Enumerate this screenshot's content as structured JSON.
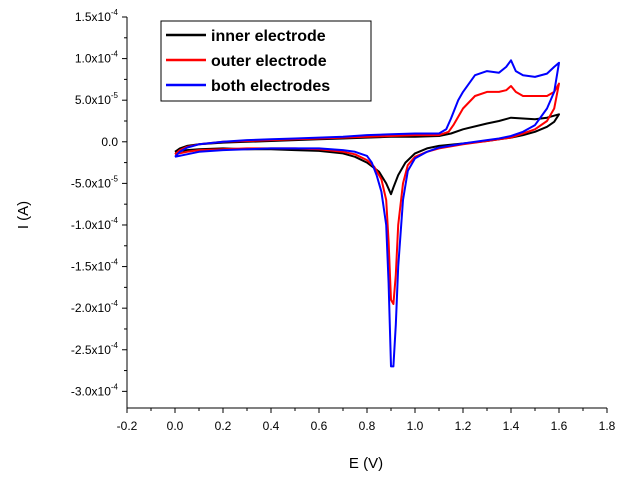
{
  "chart_data": {
    "type": "line",
    "xlabel": "E (V)",
    "ylabel": "I (A)",
    "xlim": [
      -0.2,
      1.8
    ],
    "ylim": [
      -0.00032,
      0.00015
    ],
    "grid": false,
    "legend_position": "top-left",
    "x_ticks": [
      {
        "value": -0.2,
        "label": "-0.2"
      },
      {
        "value": 0.0,
        "label": "0.0"
      },
      {
        "value": 0.2,
        "label": "0.2"
      },
      {
        "value": 0.4,
        "label": "0.4"
      },
      {
        "value": 0.6,
        "label": "0.6"
      },
      {
        "value": 0.8,
        "label": "0.8"
      },
      {
        "value": 1.0,
        "label": "1.0"
      },
      {
        "value": 1.2,
        "label": "1.2"
      },
      {
        "value": 1.4,
        "label": "1.4"
      },
      {
        "value": 1.6,
        "label": "1.6"
      },
      {
        "value": 1.8,
        "label": "1.8"
      }
    ],
    "y_ticks": [
      {
        "value": 0.00015,
        "mantissa": "1.5x10",
        "exp": "-4"
      },
      {
        "value": 0.0001,
        "mantissa": "1.0x10",
        "exp": "-4"
      },
      {
        "value": 5e-05,
        "mantissa": "5.0x10",
        "exp": "-5"
      },
      {
        "value": 0.0,
        "mantissa": "0.0",
        "exp": ""
      },
      {
        "value": -5e-05,
        "mantissa": "-5.0x10",
        "exp": "-5"
      },
      {
        "value": -0.0001,
        "mantissa": "-1.0x10",
        "exp": "-4"
      },
      {
        "value": -0.00015,
        "mantissa": "-1.5x10",
        "exp": "-4"
      },
      {
        "value": -0.0002,
        "mantissa": "-2.0x10",
        "exp": "-4"
      },
      {
        "value": -0.00025,
        "mantissa": "-2.5x10",
        "exp": "-4"
      },
      {
        "value": -0.0003,
        "mantissa": "-3.0x10",
        "exp": "-4"
      }
    ],
    "series": [
      {
        "name": "inner electrode",
        "color": "#000000",
        "x": [
          0.0,
          0.02,
          0.05,
          0.1,
          0.2,
          0.3,
          0.4,
          0.5,
          0.6,
          0.7,
          0.8,
          0.9,
          1.0,
          1.1,
          1.15,
          1.2,
          1.3,
          1.35,
          1.4,
          1.45,
          1.5,
          1.55,
          1.6,
          1.58,
          1.55,
          1.5,
          1.45,
          1.4,
          1.35,
          1.3,
          1.2,
          1.1,
          1.05,
          1.0,
          0.96,
          0.93,
          0.91,
          0.9,
          0.88,
          0.85,
          0.8,
          0.75,
          0.7,
          0.6,
          0.5,
          0.4,
          0.3,
          0.2,
          0.1,
          0.05,
          0.0
        ],
        "y": [
          -1.2e-05,
          -8e-06,
          -5e-06,
          -3e-06,
          -1e-06,
          0.0,
          1e-06,
          2e-06,
          3e-06,
          4e-06,
          5e-06,
          6e-06,
          6e-06,
          7e-06,
          1e-05,
          1.5e-05,
          2.2e-05,
          2.5e-05,
          2.9e-05,
          2.8e-05,
          2.7e-05,
          2.9e-05,
          3.3e-05,
          2.4e-05,
          1.8e-05,
          1.2e-05,
          8e-06,
          5e-06,
          3e-06,
          1e-06,
          -2e-06,
          -5e-06,
          -8e-06,
          -1.4e-05,
          -2.5e-05,
          -4e-05,
          -5.5e-05,
          -6.3e-05,
          -5e-05,
          -3.6e-05,
          -2.5e-05,
          -1.8e-05,
          -1.4e-05,
          -1.1e-05,
          -1e-05,
          -9e-06,
          -9e-06,
          -8e-06,
          -9e-06,
          -1e-05,
          -1.2e-05
        ]
      },
      {
        "name": "outer electrode",
        "color": "#ff0000",
        "x": [
          0.0,
          0.02,
          0.05,
          0.1,
          0.2,
          0.3,
          0.4,
          0.5,
          0.6,
          0.7,
          0.8,
          0.9,
          1.0,
          1.1,
          1.14,
          1.16,
          1.2,
          1.25,
          1.3,
          1.35,
          1.38,
          1.4,
          1.42,
          1.45,
          1.5,
          1.55,
          1.58,
          1.6,
          1.58,
          1.55,
          1.5,
          1.45,
          1.4,
          1.35,
          1.3,
          1.2,
          1.1,
          1.05,
          1.0,
          0.97,
          0.95,
          0.93,
          0.92,
          0.91,
          0.9,
          0.89,
          0.88,
          0.86,
          0.83,
          0.8,
          0.75,
          0.7,
          0.6,
          0.5,
          0.4,
          0.3,
          0.2,
          0.1,
          0.05,
          0.0
        ],
        "y": [
          -1.5e-05,
          -1e-05,
          -6e-06,
          -3e-06,
          0.0,
          1e-06,
          2e-06,
          3e-06,
          4e-06,
          5e-06,
          6e-06,
          7e-06,
          8e-06,
          8e-06,
          1.2e-05,
          2e-05,
          4e-05,
          5.5e-05,
          6e-05,
          6e-05,
          6.2e-05,
          6.7e-05,
          6e-05,
          5.5e-05,
          5.5e-05,
          5.5e-05,
          6e-05,
          7e-05,
          4e-05,
          2.5e-05,
          1.5e-05,
          1e-05,
          5e-06,
          3e-06,
          1e-06,
          -3e-06,
          -8e-06,
          -1.2e-05,
          -1.8e-05,
          -2.8e-05,
          -5e-05,
          -0.0001,
          -0.00016,
          -0.000195,
          -0.00019,
          -0.00012,
          -7e-05,
          -4.5e-05,
          -3e-05,
          -2.2e-05,
          -1.5e-05,
          -1.2e-05,
          -9e-06,
          -8e-06,
          -8e-06,
          -8e-06,
          -9e-06,
          -1e-05,
          -1.2e-05,
          -1.5e-05
        ]
      },
      {
        "name": "both electrodes",
        "color": "#0000ff",
        "x": [
          0.0,
          0.02,
          0.05,
          0.1,
          0.2,
          0.3,
          0.4,
          0.5,
          0.6,
          0.7,
          0.8,
          0.9,
          1.0,
          1.1,
          1.13,
          1.15,
          1.18,
          1.2,
          1.25,
          1.3,
          1.35,
          1.38,
          1.4,
          1.42,
          1.45,
          1.5,
          1.55,
          1.58,
          1.6,
          1.58,
          1.55,
          1.5,
          1.45,
          1.4,
          1.35,
          1.3,
          1.2,
          1.1,
          1.05,
          1.0,
          0.97,
          0.95,
          0.93,
          0.92,
          0.91,
          0.9,
          0.89,
          0.88,
          0.86,
          0.84,
          0.82,
          0.8,
          0.75,
          0.7,
          0.6,
          0.5,
          0.4,
          0.3,
          0.2,
          0.1,
          0.05,
          0.0
        ],
        "y": [
          -1.8e-05,
          -1.2e-05,
          -7e-06,
          -3e-06,
          0.0,
          2e-06,
          3e-06,
          4e-06,
          5e-06,
          6e-06,
          8e-06,
          9e-06,
          1e-05,
          1e-05,
          1.5e-05,
          2.8e-05,
          5e-05,
          6e-05,
          8e-05,
          8.5e-05,
          8.3e-05,
          9e-05,
          9.8e-05,
          8.5e-05,
          8e-05,
          7.8e-05,
          8.2e-05,
          9e-05,
          9.5e-05,
          6e-05,
          4e-05,
          2e-05,
          1.2e-05,
          7e-06,
          4e-06,
          2e-06,
          -2e-06,
          -7e-06,
          -1.2e-05,
          -2e-05,
          -3.5e-05,
          -7e-05,
          -0.00015,
          -0.00022,
          -0.00027,
          -0.00027,
          -0.00017,
          -0.0001,
          -6e-05,
          -4e-05,
          -2.5e-05,
          -1.7e-05,
          -1.2e-05,
          -1e-05,
          -8e-06,
          -8e-06,
          -8e-06,
          -9e-06,
          -1e-05,
          -1.2e-05,
          -1.5e-05,
          -1.8e-05
        ]
      }
    ]
  }
}
